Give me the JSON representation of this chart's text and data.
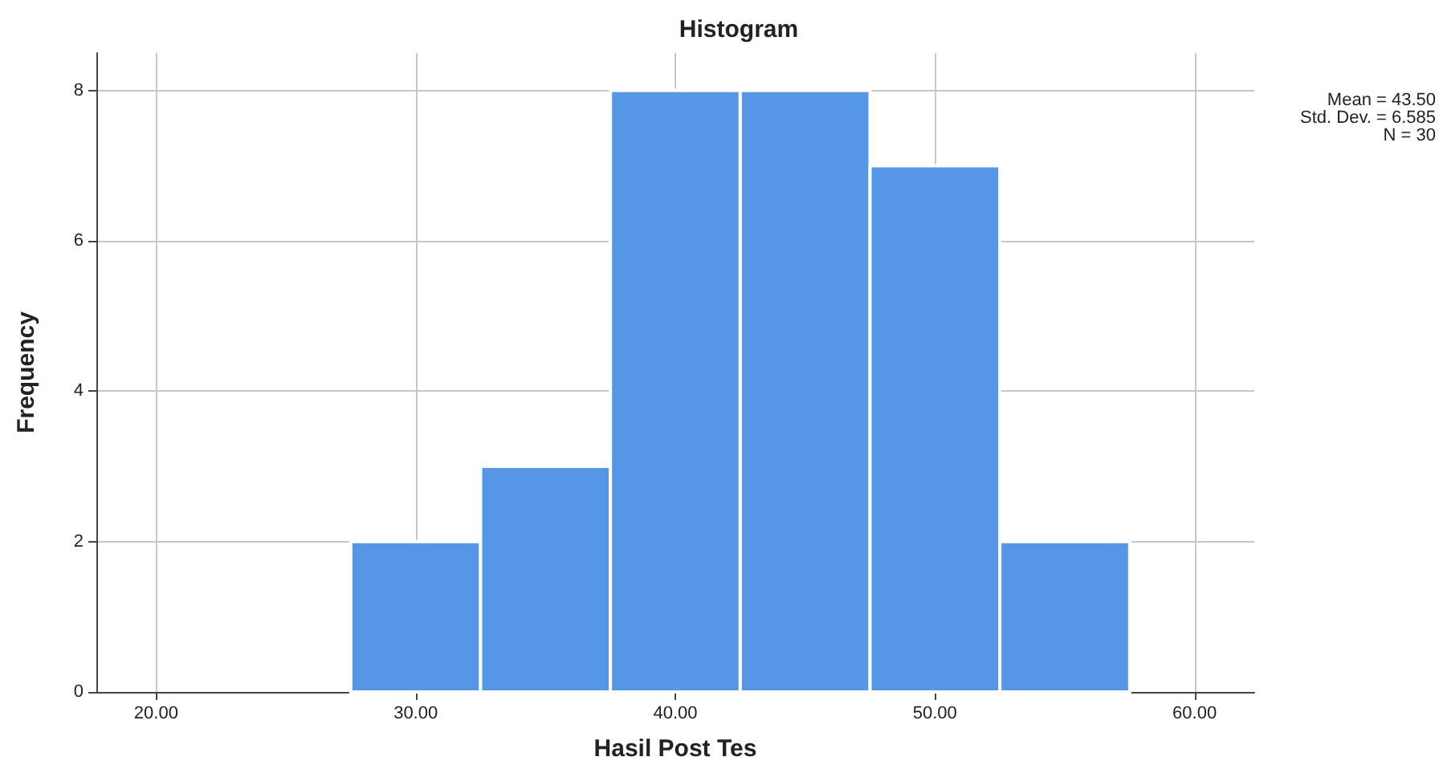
{
  "chart_data": {
    "type": "histogram",
    "title": "Histogram",
    "xlabel": "Hasil Post Tes",
    "ylabel": "Frequency",
    "bins": [
      27.5,
      32.5,
      37.5,
      42.5,
      47.5,
      52.5,
      57.5
    ],
    "values": [
      2,
      3,
      8,
      8,
      7,
      2
    ],
    "color": "#5596e6",
    "xlim": [
      17.7,
      62.3
    ],
    "xticks": [
      {
        "value": 20,
        "label": "20.00"
      },
      {
        "value": 30,
        "label": "30.00"
      },
      {
        "value": 40,
        "label": "40.00"
      },
      {
        "value": 50,
        "label": "50.00"
      },
      {
        "value": 60,
        "label": "60.00"
      }
    ],
    "ylim": [
      0,
      8.5
    ],
    "yticks": [
      0,
      2,
      4,
      6,
      8
    ],
    "grid": true,
    "annotations": [
      "Mean = 43.50",
      "Std. Dev. = 6.585",
      "N = 30"
    ]
  }
}
